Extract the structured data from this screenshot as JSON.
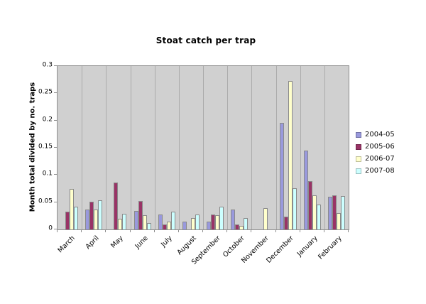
{
  "chart_data": {
    "type": "bar",
    "title": "Stoat catch per trap",
    "xlabel": "",
    "ylabel": "Month total divided by no. traps",
    "categories": [
      "March",
      "April",
      "May",
      "June",
      "July",
      "August",
      "September",
      "October",
      "November",
      "December",
      "January",
      "February"
    ],
    "series": [
      {
        "name": "2004-05",
        "color": "#9999DD",
        "values": [
          0,
          0.037,
          0,
          0.034,
          0.027,
          0.014,
          0.014,
          0.037,
          0,
          0.195,
          0.145,
          0.06
        ]
      },
      {
        "name": "2005-06",
        "color": "#993366",
        "values": [
          0.032,
          0.051,
          0.086,
          0.052,
          0.009,
          0,
          0.027,
          0.009,
          0,
          0.024,
          0.089,
          0.063
        ]
      },
      {
        "name": "2006-07",
        "color": "#FFFFCC",
        "values": [
          0.074,
          0.037,
          0.02,
          0.026,
          0.014,
          0.021,
          0.026,
          0.007,
          0.039,
          0.272,
          0.062,
          0.03
        ]
      },
      {
        "name": "2007-08",
        "color": "#CCFFFF",
        "values": [
          0.042,
          0.053,
          0.029,
          0.012,
          0.032,
          0.027,
          0.042,
          0.021,
          0,
          0.076,
          0.045,
          0.061
        ]
      }
    ],
    "ylim": [
      0,
      0.3
    ],
    "ytick_labels": [
      "0",
      "0.05",
      "0.1",
      "0.15",
      "0.2",
      "0.25",
      "0.3"
    ],
    "grid": "vertical-category-lines",
    "legend_position": "right",
    "plot_bg": "#D0D0D0"
  }
}
